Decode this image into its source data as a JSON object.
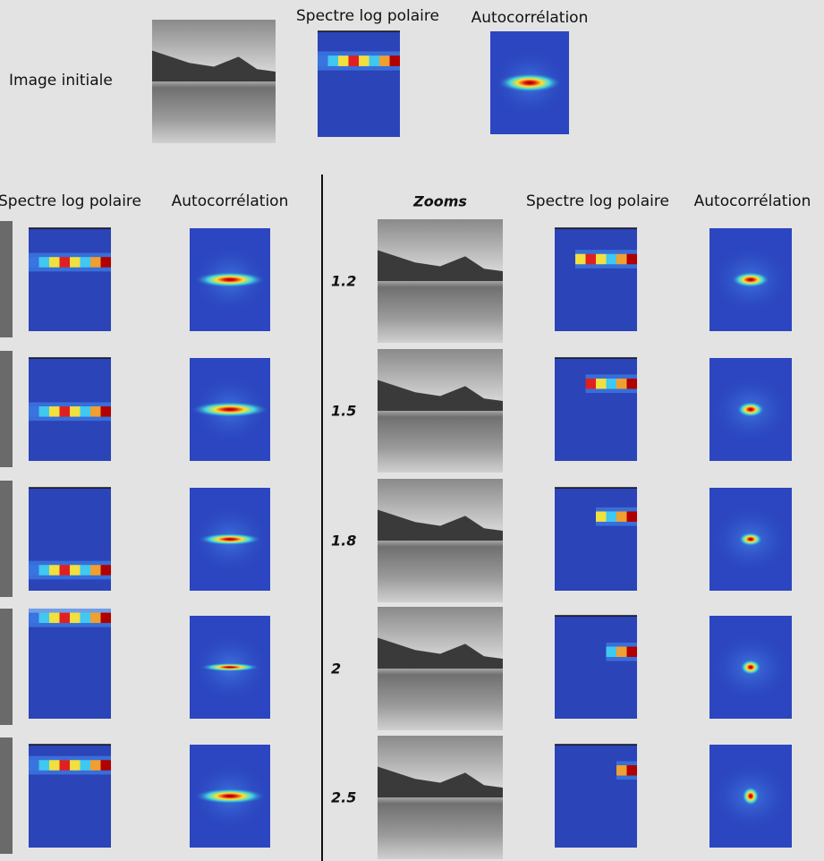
{
  "top": {
    "image_label": "Image initiale",
    "spectrum_label": "Spectre log polaire",
    "autocorrelation_label": "Autocorrélation"
  },
  "left_panel": {
    "spectrum_label": "Spectre log polaire",
    "autocorrelation_label": "Autocorrélation"
  },
  "right_panel": {
    "zooms_label": "Zooms",
    "spectrum_label": "Spectre log polaire",
    "autocorrelation_label": "Autocorrélation",
    "zoom_factors": [
      "1.2",
      "1.5",
      "1.8",
      "2",
      "2.5"
    ]
  }
}
